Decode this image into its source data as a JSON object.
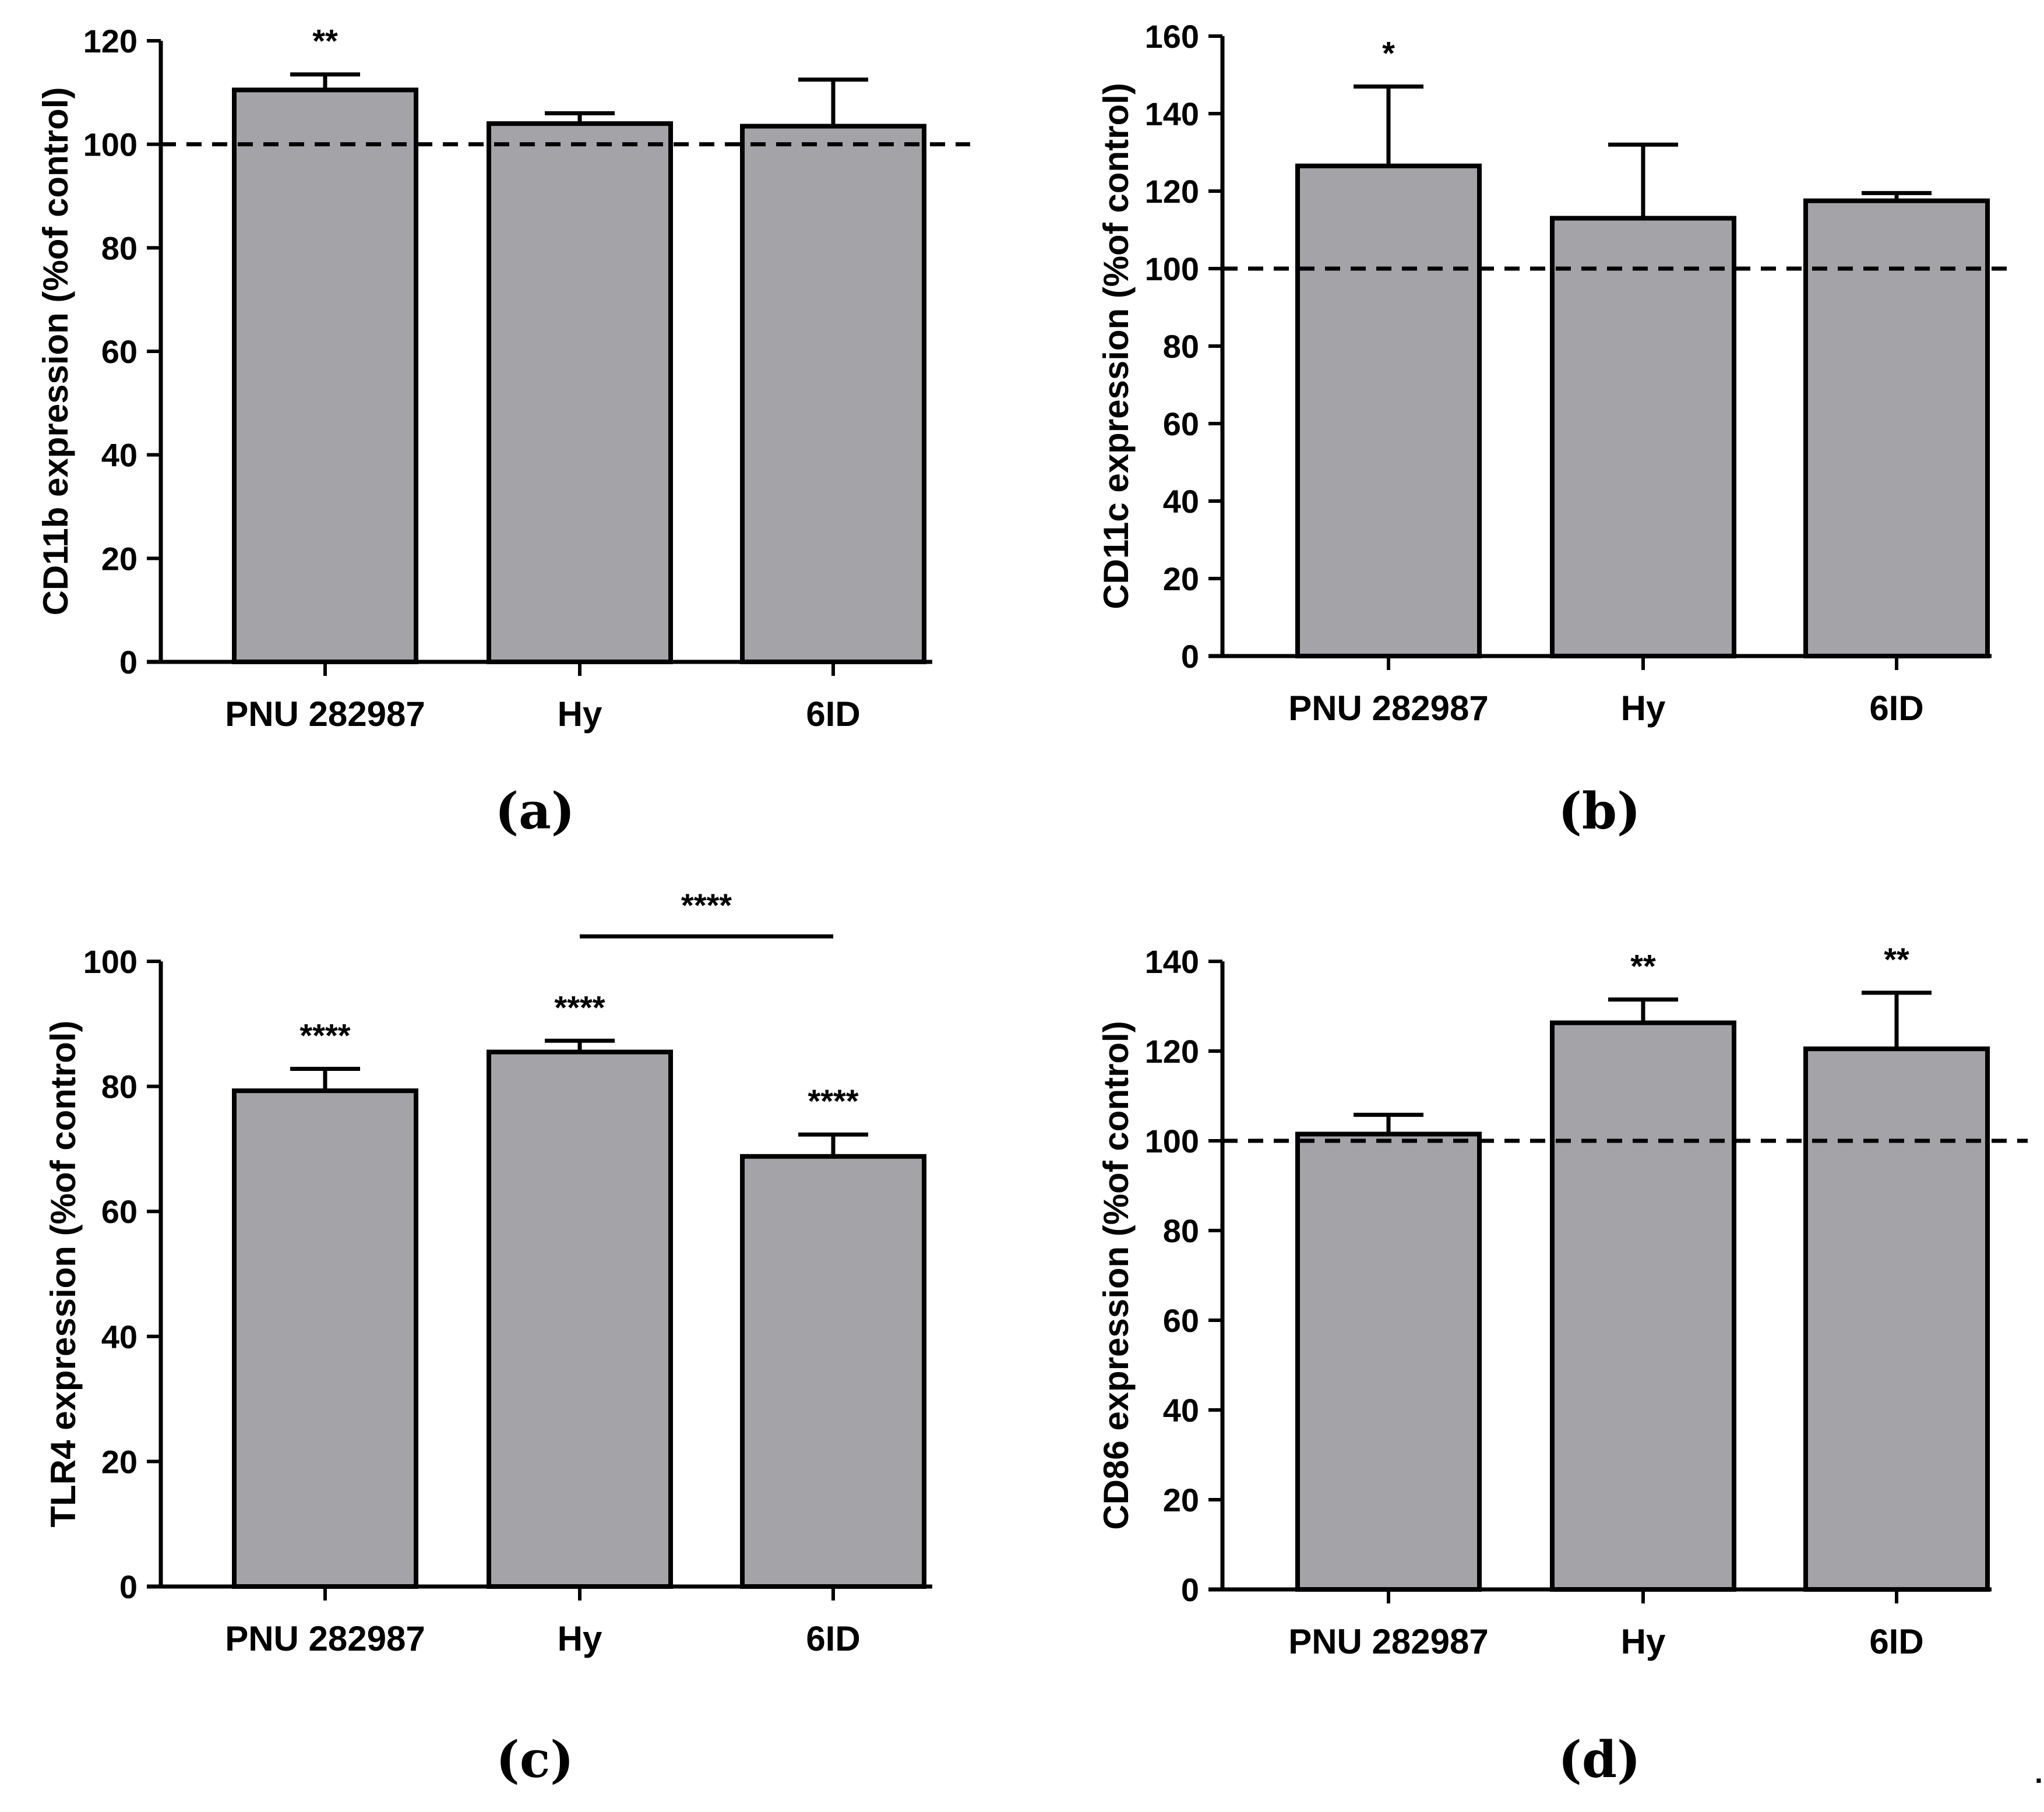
{
  "figure": {
    "panel_labels": [
      "(a)",
      "(b)",
      "(c)",
      "(d)"
    ],
    "trailing_mark": "."
  },
  "chart_data": [
    {
      "type": "bar",
      "panel": "(a)",
      "categories": [
        "PNU 282987",
        "Hy",
        "6ID"
      ],
      "values": [
        110.5,
        104,
        103.5
      ],
      "errors": [
        3,
        2,
        9
      ],
      "significance": [
        "**",
        "",
        ""
      ],
      "reference_line": 100,
      "ylabel": "CD11b expression (%of control)",
      "xlabel": "",
      "ylim": [
        0,
        120
      ],
      "yticks": [
        0,
        20,
        40,
        60,
        80,
        100,
        120
      ],
      "bar_color": "#a4a3a8",
      "comparisons": []
    },
    {
      "type": "bar",
      "panel": "(b)",
      "categories": [
        "PNU 282987",
        "Hy",
        "6ID"
      ],
      "values": [
        126.5,
        113,
        117.5
      ],
      "errors": [
        20.5,
        19,
        2
      ],
      "significance": [
        "*",
        "",
        ""
      ],
      "reference_line": 100,
      "ylabel": "CD11c expression (%of control)",
      "xlabel": "",
      "ylim": [
        0,
        160
      ],
      "yticks": [
        0,
        20,
        40,
        60,
        80,
        100,
        120,
        140,
        160
      ],
      "bar_color": "#a4a3a8",
      "comparisons": []
    },
    {
      "type": "bar",
      "panel": "(c)",
      "categories": [
        "PNU 282987",
        "Hy",
        "6ID"
      ],
      "values": [
        79.3,
        85.5,
        68.8
      ],
      "errors": [
        3.5,
        1.8,
        3.5
      ],
      "significance": [
        "****",
        "****",
        "****"
      ],
      "reference_line": null,
      "ylabel": "TLR4 expression (%of control)",
      "xlabel": "",
      "ylim": [
        0,
        100
      ],
      "yticks": [
        0,
        20,
        40,
        60,
        80,
        100
      ],
      "bar_color": "#a4a3a8",
      "comparisons": [
        {
          "from": 1,
          "to": 2,
          "label": "****",
          "y": 104
        }
      ]
    },
    {
      "type": "bar",
      "panel": "(d)",
      "categories": [
        "PNU 282987",
        "Hy",
        "6ID"
      ],
      "values": [
        101.5,
        126.3,
        120.5
      ],
      "errors": [
        4.3,
        5.2,
        12.5
      ],
      "significance": [
        "",
        "**",
        "**"
      ],
      "reference_line": 100,
      "ylabel": "CD86 expression (%of control)",
      "xlabel": "",
      "ylim": [
        0,
        140
      ],
      "yticks": [
        0,
        20,
        40,
        60,
        80,
        100,
        120,
        140
      ],
      "bar_color": "#a4a3a8",
      "comparisons": []
    }
  ]
}
